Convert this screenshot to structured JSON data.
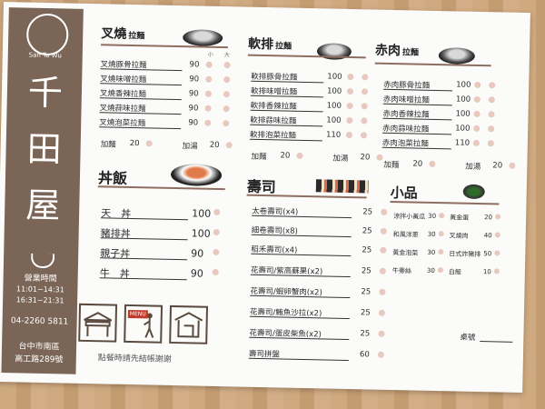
{
  "brand": {
    "logo_text": "San Ta Wu",
    "name_chars": [
      "千",
      "田",
      "屋"
    ],
    "hours_label": "營業時間",
    "hours": [
      "11:01~14:31",
      "16:31~21:31"
    ],
    "phone": "04-2260 5811",
    "address_lines": [
      "台中市南區",
      "高工路289號"
    ],
    "order_note": "點餐時請先結帳謝謝",
    "menu_sign": "MENU"
  },
  "chashu": {
    "title": "叉燒",
    "subtitle": "拉麵",
    "col_small": "小",
    "col_large": "大",
    "items": [
      {
        "name": "叉燒豚骨拉麵",
        "price": "90"
      },
      {
        "name": "叉燒味噌拉麵",
        "price": "90"
      },
      {
        "name": "叉燒香辣拉麵",
        "price": "90"
      },
      {
        "name": "叉燒蒜味拉麵",
        "price": "90"
      },
      {
        "name": "叉燒泡菜拉麵",
        "price": "90"
      }
    ],
    "extra_noodle": {
      "name": "加麵",
      "price": "20"
    },
    "extra_soup": {
      "name": "加湯",
      "price": "20"
    }
  },
  "paigu": {
    "title": "軟排",
    "subtitle": "拉麵",
    "items": [
      {
        "name": "軟排豚骨拉麵",
        "price": "100"
      },
      {
        "name": "軟排味噌拉麵",
        "price": "100"
      },
      {
        "name": "軟排香辣拉麵",
        "price": "100"
      },
      {
        "name": "軟排蒜味拉麵",
        "price": "100"
      },
      {
        "name": "軟排泡菜拉麵",
        "price": "110"
      }
    ],
    "extra_noodle": {
      "name": "加麵",
      "price": "20"
    },
    "extra_soup": {
      "name": "加湯",
      "price": "20"
    }
  },
  "redmeat": {
    "title": "赤肉",
    "subtitle": "拉麵",
    "items": [
      {
        "name": "赤肉豚骨拉麵",
        "price": "100"
      },
      {
        "name": "赤肉味噌拉麵",
        "price": "100"
      },
      {
        "name": "赤肉香辣拉麵",
        "price": "100"
      },
      {
        "name": "赤肉蒜味拉麵",
        "price": "100"
      },
      {
        "name": "赤肉泡菜拉麵",
        "price": "110"
      }
    ],
    "extra_noodle": {
      "name": "加麵",
      "price": "20"
    },
    "extra_soup": {
      "name": "加湯",
      "price": "20"
    }
  },
  "donburi": {
    "title": "丼飯",
    "items": [
      {
        "name": "天　丼",
        "price": "100"
      },
      {
        "name": "豬排丼",
        "price": "100"
      },
      {
        "name": "親子丼",
        "price": "90"
      },
      {
        "name": "牛　丼",
        "price": "90"
      }
    ]
  },
  "sushi": {
    "title": "壽司",
    "items": [
      {
        "name": "太卷壽司(x4)",
        "price": "25"
      },
      {
        "name": "細卷壽司(x8)",
        "price": "25"
      },
      {
        "name": "稻禾壽司(x4)",
        "price": "25"
      },
      {
        "name": "花壽司/紫高蘇果(x2)",
        "price": "25"
      },
      {
        "name": "花壽司/蝦卵蟹肉(x2)",
        "price": "25"
      },
      {
        "name": "花壽司/鮪魚沙拉(x2)",
        "price": "25"
      },
      {
        "name": "花壽司/蛋皮柴魚(x2)",
        "price": "25"
      },
      {
        "name": "壽司拼盤",
        "price": "60"
      }
    ]
  },
  "sides": {
    "title": "小品",
    "items": [
      {
        "name": "涼拌小黃瓜",
        "price": "30"
      },
      {
        "name": "黃金蛋",
        "price": "20"
      },
      {
        "name": "和風洋蔥",
        "price": "30"
      },
      {
        "name": "叉燒肉",
        "price": "40"
      },
      {
        "name": "黃金泡菜",
        "price": "30"
      },
      {
        "name": "日式炸豬排",
        "price": "50"
      },
      {
        "name": "牛蒡絲",
        "price": "30"
      },
      {
        "name": "白飯",
        "price": "10"
      }
    ],
    "table_label": "桌號"
  }
}
